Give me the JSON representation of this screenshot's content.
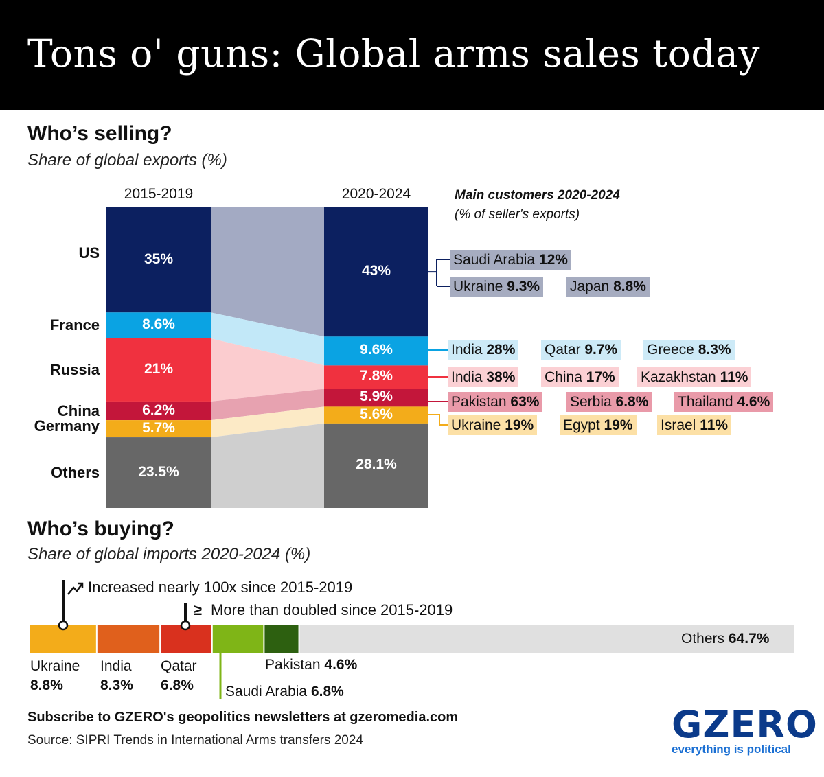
{
  "title": "Tons o' guns: Global arms sales today",
  "selling": {
    "heading": "Who’s selling?",
    "subtitle": "Share of global exports (%)",
    "main_customers_title": "Main customers 2020-2024",
    "main_customers_note": "(% of seller's exports)"
  },
  "buying": {
    "heading": "Who’s buying?",
    "subtitle": "Share of global imports 2020-2024 (%)",
    "note_increase": "Increased nearly 100x since 2015-2019",
    "note_doubled": "More than doubled since 2015-2019",
    "doubled_symbol": "≥"
  },
  "footer": {
    "subscribe": "Subscribe to GZERO's geopolitics newsletters at gzeromedia.com",
    "source": "Source: SIPRI Trends in International Arms transfers 2024",
    "logo": "GZERO",
    "tagline": "everything is political"
  },
  "colors": {
    "US": "#0c2060",
    "France": "#0aa3e3",
    "Russia": "#f0313f",
    "China": "#c3163a",
    "Germany": "#f3ac1a",
    "Others": "#676767",
    "Ukraine": "#f3ac1a",
    "India": "#e0601c",
    "Qatar": "#d9311e",
    "Saudi Arabia": "#7fb517",
    "Pakistan": "#2d6010",
    "OthersBuy": "#e0e0e0"
  },
  "chart_data": [
    {
      "type": "bar",
      "stacked": true,
      "title": "Who’s selling?",
      "subtitle": "Share of global exports (%)",
      "categories": [
        "2015-2019",
        "2020-2024"
      ],
      "series": [
        {
          "name": "US",
          "values": [
            35,
            43
          ],
          "labels": [
            "35%",
            "43%"
          ]
        },
        {
          "name": "France",
          "values": [
            8.6,
            9.6
          ],
          "labels": [
            "8.6%",
            "9.6%"
          ]
        },
        {
          "name": "Russia",
          "values": [
            21,
            7.8
          ],
          "labels": [
            "21%",
            "7.8%"
          ]
        },
        {
          "name": "China",
          "values": [
            6.2,
            5.9
          ],
          "labels": [
            "6.2%",
            "5.9%"
          ]
        },
        {
          "name": "Germany",
          "values": [
            5.7,
            5.6
          ],
          "labels": [
            "5.7%",
            "5.6%"
          ]
        },
        {
          "name": "Others",
          "values": [
            23.5,
            28.1
          ],
          "labels": [
            "23.5%",
            "28.1%"
          ]
        }
      ],
      "main_customers": [
        {
          "seller": "US",
          "customers": [
            {
              "name": "Saudi Arabia",
              "value": "12%"
            },
            {
              "name": "Ukraine",
              "value": "9.3%"
            },
            {
              "name": "Japan",
              "value": "8.8%"
            }
          ]
        },
        {
          "seller": "France",
          "customers": [
            {
              "name": "India",
              "value": "28%"
            },
            {
              "name": "Qatar",
              "value": "9.7%"
            },
            {
              "name": "Greece",
              "value": "8.3%"
            }
          ]
        },
        {
          "seller": "Russia",
          "customers": [
            {
              "name": "India",
              "value": "38%"
            },
            {
              "name": "China",
              "value": "17%"
            },
            {
              "name": "Kazakhstan",
              "value": "11%"
            }
          ]
        },
        {
          "seller": "China",
          "customers": [
            {
              "name": "Pakistan",
              "value": "63%"
            },
            {
              "name": "Serbia",
              "value": "6.8%"
            },
            {
              "name": "Thailand",
              "value": "4.6%"
            }
          ]
        },
        {
          "seller": "Germany",
          "customers": [
            {
              "name": "Ukraine",
              "value": "19%"
            },
            {
              "name": "Egypt",
              "value": "19%"
            },
            {
              "name": "Israel",
              "value": "11%"
            }
          ]
        }
      ]
    },
    {
      "type": "bar",
      "stacked": true,
      "orientation": "horizontal",
      "title": "Who’s buying?",
      "subtitle": "Share of global imports 2020-2024 (%)",
      "segments": [
        {
          "name": "Ukraine",
          "value": 8.8,
          "label": "8.8%"
        },
        {
          "name": "India",
          "value": 8.3,
          "label": "8.3%"
        },
        {
          "name": "Qatar",
          "value": 6.8,
          "label": "6.8%"
        },
        {
          "name": "Saudi Arabia",
          "value": 6.8,
          "label": "6.8%"
        },
        {
          "name": "Pakistan",
          "value": 4.6,
          "label": "4.6%"
        },
        {
          "name": "Others",
          "value": 64.7,
          "label": "64.7%"
        }
      ]
    }
  ]
}
